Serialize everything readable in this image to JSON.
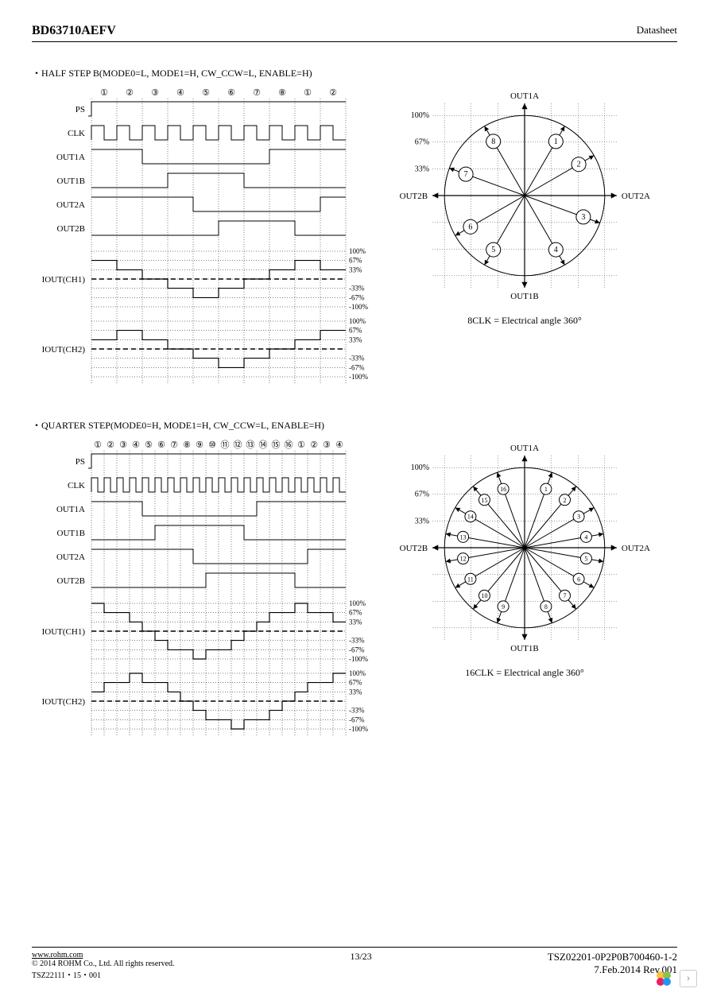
{
  "header": {
    "part_number": "BD63710AEFV",
    "doc_type": "Datasheet"
  },
  "sections": [
    {
      "title": "・HALF STEP B(MODE0=L, MODE1=H, CW_CCW=L, ENABLE=H)",
      "phasor_caption": "8CLK = Electrical angle 360°",
      "phasor": {
        "labels_top": "OUT1A",
        "labels_bottom": "OUT1B",
        "labels_left": "OUT2B",
        "labels_right": "OUT2A",
        "pct_labels": [
          "100%",
          "67%",
          "33%"
        ],
        "steps": 8,
        "nodes": [
          {
            "n": "1",
            "ang": 60
          },
          {
            "n": "2",
            "ang": 30
          },
          {
            "n": "3",
            "ang": 340
          },
          {
            "n": "4",
            "ang": 300
          },
          {
            "n": "5",
            "ang": 240
          },
          {
            "n": "6",
            "ang": 210
          },
          {
            "n": "7",
            "ang": 160
          },
          {
            "n": "8",
            "ang": 120
          }
        ]
      },
      "timing": {
        "col_headers": [
          "①",
          "②",
          "③",
          "④",
          "⑤",
          "⑥",
          "⑦",
          "⑧",
          "①",
          "②"
        ],
        "n_cols": 10,
        "signals": [
          {
            "name": "PS",
            "type": "high",
            "data": [
              1,
              1,
              1,
              1,
              1,
              1,
              1,
              1,
              1,
              1
            ]
          },
          {
            "name": "CLK",
            "type": "clock",
            "data": null
          },
          {
            "name": "OUT1A",
            "type": "dig",
            "data": [
              1,
              1,
              0,
              0,
              0,
              0,
              0,
              1,
              1,
              1
            ]
          },
          {
            "name": "OUT1B",
            "type": "dig",
            "data": [
              0,
              0,
              0,
              1,
              1,
              1,
              0,
              0,
              0,
              0
            ]
          },
          {
            "name": "OUT2A",
            "type": "dig",
            "data": [
              1,
              1,
              1,
              1,
              0,
              0,
              0,
              0,
              0,
              1
            ]
          },
          {
            "name": "OUT2B",
            "type": "dig",
            "data": [
              0,
              0,
              0,
              0,
              0,
              1,
              1,
              1,
              0,
              0
            ]
          }
        ],
        "analog": [
          {
            "name": "IOUT(CH1)",
            "levels": [
              "100%",
              "67%",
              "33%",
              "-33%",
              "-67%",
              "-100%"
            ],
            "data": [
              67,
              33,
              0,
              -33,
              -67,
              -33,
              0,
              33,
              67,
              33
            ]
          },
          {
            "name": "IOUT(CH2)",
            "levels": [
              "100%",
              "67%",
              "33%",
              "-33%",
              "-67%",
              "-100%"
            ],
            "data": [
              33,
              67,
              33,
              0,
              -33,
              -67,
              -33,
              0,
              33,
              67
            ]
          }
        ]
      }
    },
    {
      "title": "・QUARTER STEP(MODE0=H, MODE1=H, CW_CCW=L, ENABLE=H)",
      "phasor_caption": "16CLK = Electrical angle 360°",
      "phasor": {
        "labels_top": "OUT1A",
        "labels_bottom": "OUT1B",
        "labels_left": "OUT2B",
        "labels_right": "OUT2A",
        "pct_labels": [
          "100%",
          "67%",
          "33%"
        ],
        "steps": 16,
        "nodes": [
          {
            "n": "1",
            "ang": 70
          },
          {
            "n": "2",
            "ang": 50
          },
          {
            "n": "3",
            "ang": 30
          },
          {
            "n": "4",
            "ang": 10
          },
          {
            "n": "5",
            "ang": 350
          },
          {
            "n": "6",
            "ang": 330
          },
          {
            "n": "7",
            "ang": 310
          },
          {
            "n": "8",
            "ang": 290
          },
          {
            "n": "9",
            "ang": 250
          },
          {
            "n": "10",
            "ang": 230
          },
          {
            "n": "11",
            "ang": 210
          },
          {
            "n": "12",
            "ang": 190
          },
          {
            "n": "13",
            "ang": 170
          },
          {
            "n": "14",
            "ang": 150
          },
          {
            "n": "15",
            "ang": 130
          },
          {
            "n": "16",
            "ang": 110
          }
        ]
      },
      "timing": {
        "col_headers": [
          "①",
          "②",
          "③",
          "④",
          "⑤",
          "⑥",
          "⑦",
          "⑧",
          "⑨",
          "⑩",
          "⑪",
          "⑫",
          "⑬",
          "⑭",
          "⑮",
          "⑯",
          "①",
          "②",
          "③",
          "④"
        ],
        "n_cols": 20,
        "signals": [
          {
            "name": "PS",
            "type": "high",
            "data": null
          },
          {
            "name": "CLK",
            "type": "clock",
            "data": null
          },
          {
            "name": "OUT1A",
            "type": "dig",
            "data": [
              1,
              1,
              1,
              1,
              0,
              0,
              0,
              0,
              0,
              0,
              0,
              0,
              0,
              1,
              1,
              1,
              1,
              1,
              1,
              1
            ]
          },
          {
            "name": "OUT1B",
            "type": "dig",
            "data": [
              0,
              0,
              0,
              0,
              0,
              1,
              1,
              1,
              1,
              1,
              1,
              1,
              0,
              0,
              0,
              0,
              0,
              0,
              0,
              0
            ]
          },
          {
            "name": "OUT2A",
            "type": "dig",
            "data": [
              1,
              1,
              1,
              1,
              1,
              1,
              1,
              1,
              0,
              0,
              0,
              0,
              0,
              0,
              0,
              0,
              0,
              1,
              1,
              1
            ]
          },
          {
            "name": "OUT2B",
            "type": "dig",
            "data": [
              0,
              0,
              0,
              0,
              0,
              0,
              0,
              0,
              0,
              1,
              1,
              1,
              1,
              1,
              1,
              1,
              0,
              0,
              0,
              0
            ]
          }
        ],
        "analog": [
          {
            "name": "IOUT(CH1)",
            "levels": [
              "100%",
              "67%",
              "33%",
              "-33%",
              "-67%",
              "-100%"
            ],
            "data": [
              100,
              67,
              67,
              33,
              0,
              -33,
              -67,
              -67,
              -100,
              -67,
              -67,
              -33,
              0,
              33,
              67,
              67,
              100,
              67,
              67,
              33
            ]
          },
          {
            "name": "IOUT(CH2)",
            "levels": [
              "100%",
              "67%",
              "33%",
              "-33%",
              "-67%",
              "-100%"
            ],
            "data": [
              33,
              67,
              67,
              100,
              67,
              67,
              33,
              0,
              -33,
              -67,
              -67,
              -100,
              -67,
              -67,
              -33,
              0,
              33,
              67,
              67,
              100
            ]
          }
        ]
      }
    }
  ],
  "footer": {
    "url": "www.rohm.com",
    "copyright": "© 2014 ROHM Co., Ltd. All rights reserved.",
    "tsz_left": "TSZ22111・15・001",
    "page": "13/23",
    "doc_code": "TSZ02201-0P2P0B700460-1-2",
    "rev": "7.Feb.2014 Rev.001"
  },
  "style": {
    "stroke": "#000000",
    "dotted": "#000000",
    "bg": "#ffffff",
    "font_size_label": 11,
    "font_size_header": 11
  }
}
